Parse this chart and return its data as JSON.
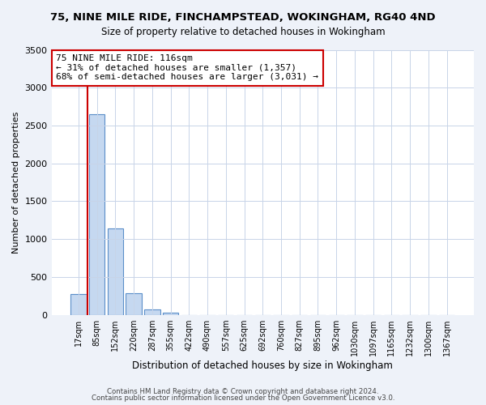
{
  "title1": "75, NINE MILE RIDE, FINCHAMPSTEAD, WOKINGHAM, RG40 4ND",
  "title2": "Size of property relative to detached houses in Wokingham",
  "xlabel": "Distribution of detached houses by size in Wokingham",
  "ylabel": "Number of detached properties",
  "bar_labels": [
    "17sqm",
    "85sqm",
    "152sqm",
    "220sqm",
    "287sqm",
    "355sqm",
    "422sqm",
    "490sqm",
    "557sqm",
    "625sqm",
    "692sqm",
    "760sqm",
    "827sqm",
    "895sqm",
    "962sqm",
    "1030sqm",
    "1097sqm",
    "1165sqm",
    "1232sqm",
    "1300sqm",
    "1367sqm"
  ],
  "bar_heights": [
    270,
    2650,
    1140,
    280,
    75,
    30,
    0,
    0,
    0,
    0,
    0,
    0,
    0,
    0,
    0,
    0,
    0,
    0,
    0,
    0,
    0
  ],
  "bar_color": "#c5d8f0",
  "bar_edge_color": "#5b8fc9",
  "vline_x": 0.5,
  "vline_color": "#cc0000",
  "ylim": [
    0,
    3500
  ],
  "yticks": [
    0,
    500,
    1000,
    1500,
    2000,
    2500,
    3000,
    3500
  ],
  "annotation_box_text": "75 NINE MILE RIDE: 116sqm\n← 31% of detached houses are smaller (1,357)\n68% of semi-detached houses are larger (3,031) →",
  "annotation_box_color": "#cc0000",
  "footer1": "Contains HM Land Registry data © Crown copyright and database right 2024.",
  "footer2": "Contains public sector information licensed under the Open Government Licence v3.0.",
  "bg_color": "#eef2f9",
  "plot_bg_color": "#ffffff",
  "grid_color": "#c8d4e8"
}
